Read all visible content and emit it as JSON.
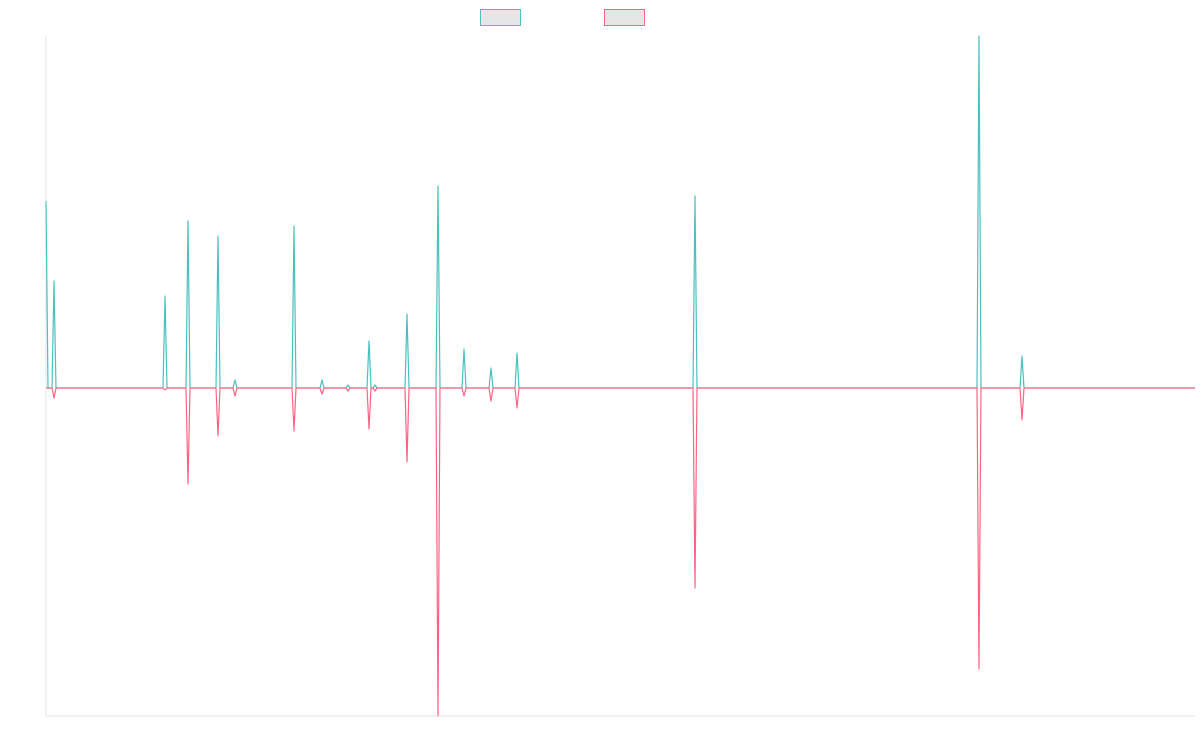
{
  "chart_data": {
    "type": "line",
    "title": "",
    "xlabel": "",
    "ylabel": "",
    "legend": "top-center",
    "grid": false,
    "xlim": [
      0,
      1149
    ],
    "ylim": [
      -328,
      352
    ],
    "series": [
      {
        "color": "#4bc0c0",
        "points": [
          [
            0,
            187
          ],
          [
            2,
            0
          ],
          [
            6,
            0
          ],
          [
            8,
            107
          ],
          [
            10,
            0
          ],
          [
            117,
            0
          ],
          [
            119,
            92
          ],
          [
            121,
            0
          ],
          [
            140,
            0
          ],
          [
            142,
            167
          ],
          [
            144,
            0
          ],
          [
            170,
            0
          ],
          [
            172,
            152
          ],
          [
            174,
            0
          ],
          [
            187,
            0
          ],
          [
            189,
            8
          ],
          [
            191,
            0
          ],
          [
            246,
            0
          ],
          [
            248,
            162
          ],
          [
            250,
            0
          ],
          [
            274,
            0
          ],
          [
            276,
            8
          ],
          [
            278,
            0
          ],
          [
            300,
            0
          ],
          [
            302,
            3
          ],
          [
            304,
            0
          ],
          [
            321,
            0
          ],
          [
            323,
            47
          ],
          [
            325,
            0
          ],
          [
            327,
            0
          ],
          [
            329,
            3
          ],
          [
            331,
            0
          ],
          [
            359,
            0
          ],
          [
            361,
            74
          ],
          [
            363,
            0
          ],
          [
            390,
            0
          ],
          [
            392,
            202
          ],
          [
            394,
            0
          ],
          [
            416,
            0
          ],
          [
            418,
            39
          ],
          [
            420,
            0
          ],
          [
            443,
            0
          ],
          [
            445,
            20
          ],
          [
            447,
            0
          ],
          [
            469,
            0
          ],
          [
            471,
            35
          ],
          [
            473,
            0
          ],
          [
            647,
            0
          ],
          [
            649,
            192
          ],
          [
            651,
            0
          ],
          [
            931,
            0
          ],
          [
            933,
            352
          ],
          [
            935,
            0
          ],
          [
            974,
            0
          ],
          [
            976,
            32
          ],
          [
            978,
            0
          ],
          [
            1149,
            0
          ]
        ]
      },
      {
        "color": "#ff6384",
        "points": [
          [
            0,
            0
          ],
          [
            6,
            0
          ],
          [
            8,
            -10
          ],
          [
            10,
            0
          ],
          [
            117,
            0
          ],
          [
            119,
            -2
          ],
          [
            121,
            0
          ],
          [
            140,
            0
          ],
          [
            142,
            -96
          ],
          [
            144,
            0
          ],
          [
            170,
            0
          ],
          [
            172,
            -48
          ],
          [
            174,
            0
          ],
          [
            187,
            0
          ],
          [
            189,
            -8
          ],
          [
            191,
            0
          ],
          [
            246,
            0
          ],
          [
            248,
            -43
          ],
          [
            250,
            0
          ],
          [
            274,
            0
          ],
          [
            276,
            -6
          ],
          [
            278,
            0
          ],
          [
            300,
            0
          ],
          [
            302,
            -3
          ],
          [
            304,
            0
          ],
          [
            321,
            0
          ],
          [
            323,
            -41
          ],
          [
            325,
            0
          ],
          [
            327,
            0
          ],
          [
            329,
            -3
          ],
          [
            331,
            0
          ],
          [
            359,
            0
          ],
          [
            361,
            -74
          ],
          [
            363,
            0
          ],
          [
            390,
            0
          ],
          [
            392,
            -328
          ],
          [
            394,
            0
          ],
          [
            416,
            0
          ],
          [
            418,
            -8
          ],
          [
            420,
            0
          ],
          [
            443,
            0
          ],
          [
            445,
            -13
          ],
          [
            447,
            0
          ],
          [
            469,
            0
          ],
          [
            471,
            -20
          ],
          [
            473,
            0
          ],
          [
            647,
            0
          ],
          [
            649,
            -200
          ],
          [
            651,
            0
          ],
          [
            931,
            0
          ],
          [
            933,
            -281
          ],
          [
            935,
            0
          ],
          [
            974,
            0
          ],
          [
            976,
            -32
          ],
          [
            978,
            0
          ],
          [
            1149,
            0
          ]
        ]
      }
    ]
  }
}
